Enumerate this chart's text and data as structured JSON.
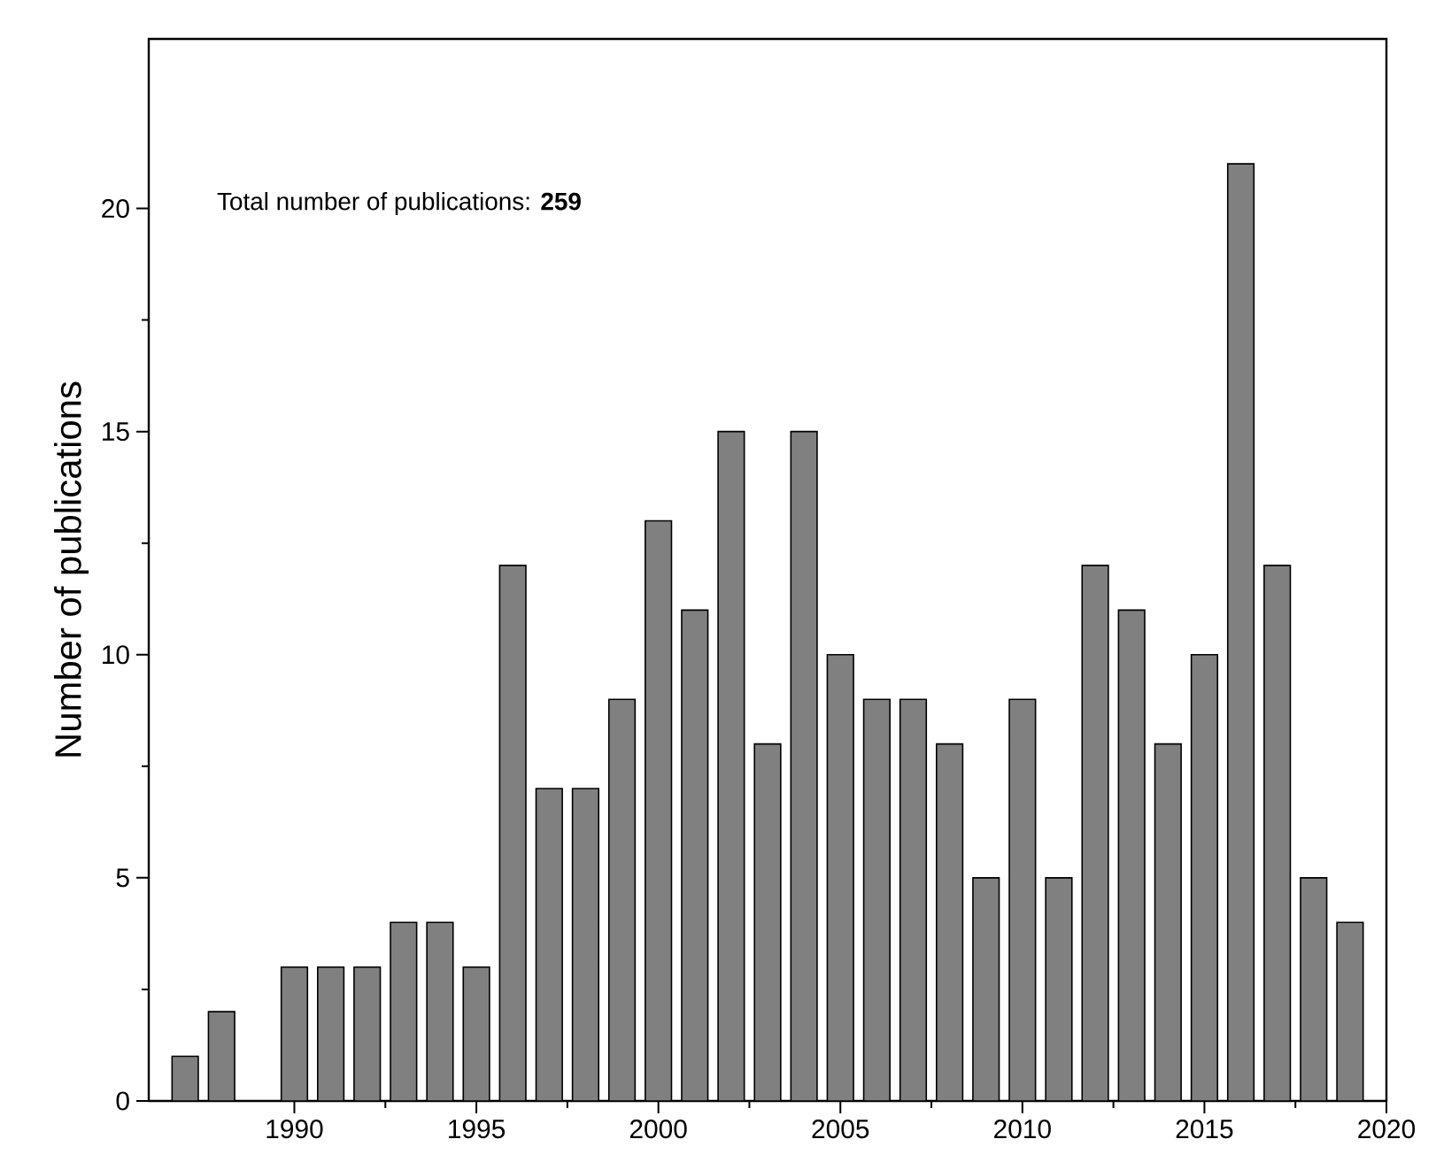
{
  "chart_data": {
    "type": "bar",
    "ylabel": "Number of publications",
    "annotations": [
      "Total number of publications: **259**"
    ],
    "x": [
      1987,
      1988,
      1990,
      1991,
      1992,
      1993,
      1994,
      1995,
      1996,
      1997,
      1998,
      1999,
      2000,
      2001,
      2002,
      2003,
      2004,
      2005,
      2006,
      2007,
      2008,
      2009,
      2010,
      2011,
      2012,
      2013,
      2014,
      2015,
      2016,
      2017,
      2018,
      2019
    ],
    "values": [
      1,
      2,
      3,
      3,
      3,
      4,
      4,
      3,
      12,
      7,
      7,
      9,
      13,
      11,
      15,
      8,
      15,
      10,
      9,
      9,
      8,
      5,
      9,
      5,
      12,
      11,
      8,
      10,
      21,
      12,
      5,
      4
    ],
    "color": "#808080",
    "xlim": [
      1986,
      2020
    ],
    "ylim": [
      0,
      23.8
    ],
    "xticks": [
      1990,
      1995,
      2000,
      2005,
      2010,
      2015,
      2020
    ],
    "yticks": [
      0,
      5,
      10,
      15,
      20
    ],
    "grid": false
  }
}
